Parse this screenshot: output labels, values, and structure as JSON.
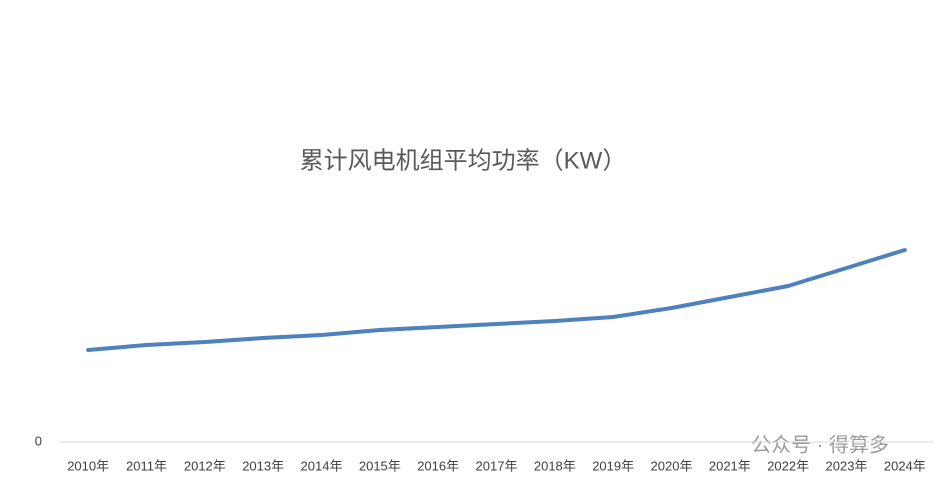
{
  "chart_data": {
    "type": "line",
    "title": "累计风电机组平均功率（KW）",
    "categories": [
      "2010年",
      "2011年",
      "2012年",
      "2013年",
      "2014年",
      "2015年",
      "2016年",
      "2017年",
      "2018年",
      "2019年",
      "2020年",
      "2021年",
      "2022年",
      "2023年",
      "2024年"
    ],
    "series": [
      {
        "name": "累计风电机组平均功率",
        "color": "#4f81bd",
        "values": [
          1380,
          1455,
          1500,
          1560,
          1605,
          1680,
          1725,
          1770,
          1815,
          1875,
          2010,
          2175,
          2340,
          2610,
          2880
        ]
      }
    ],
    "ylim": [
      0,
      3000
    ],
    "yticks": [
      0
    ],
    "grid": false,
    "watermark": "公众号 · 得算多"
  }
}
